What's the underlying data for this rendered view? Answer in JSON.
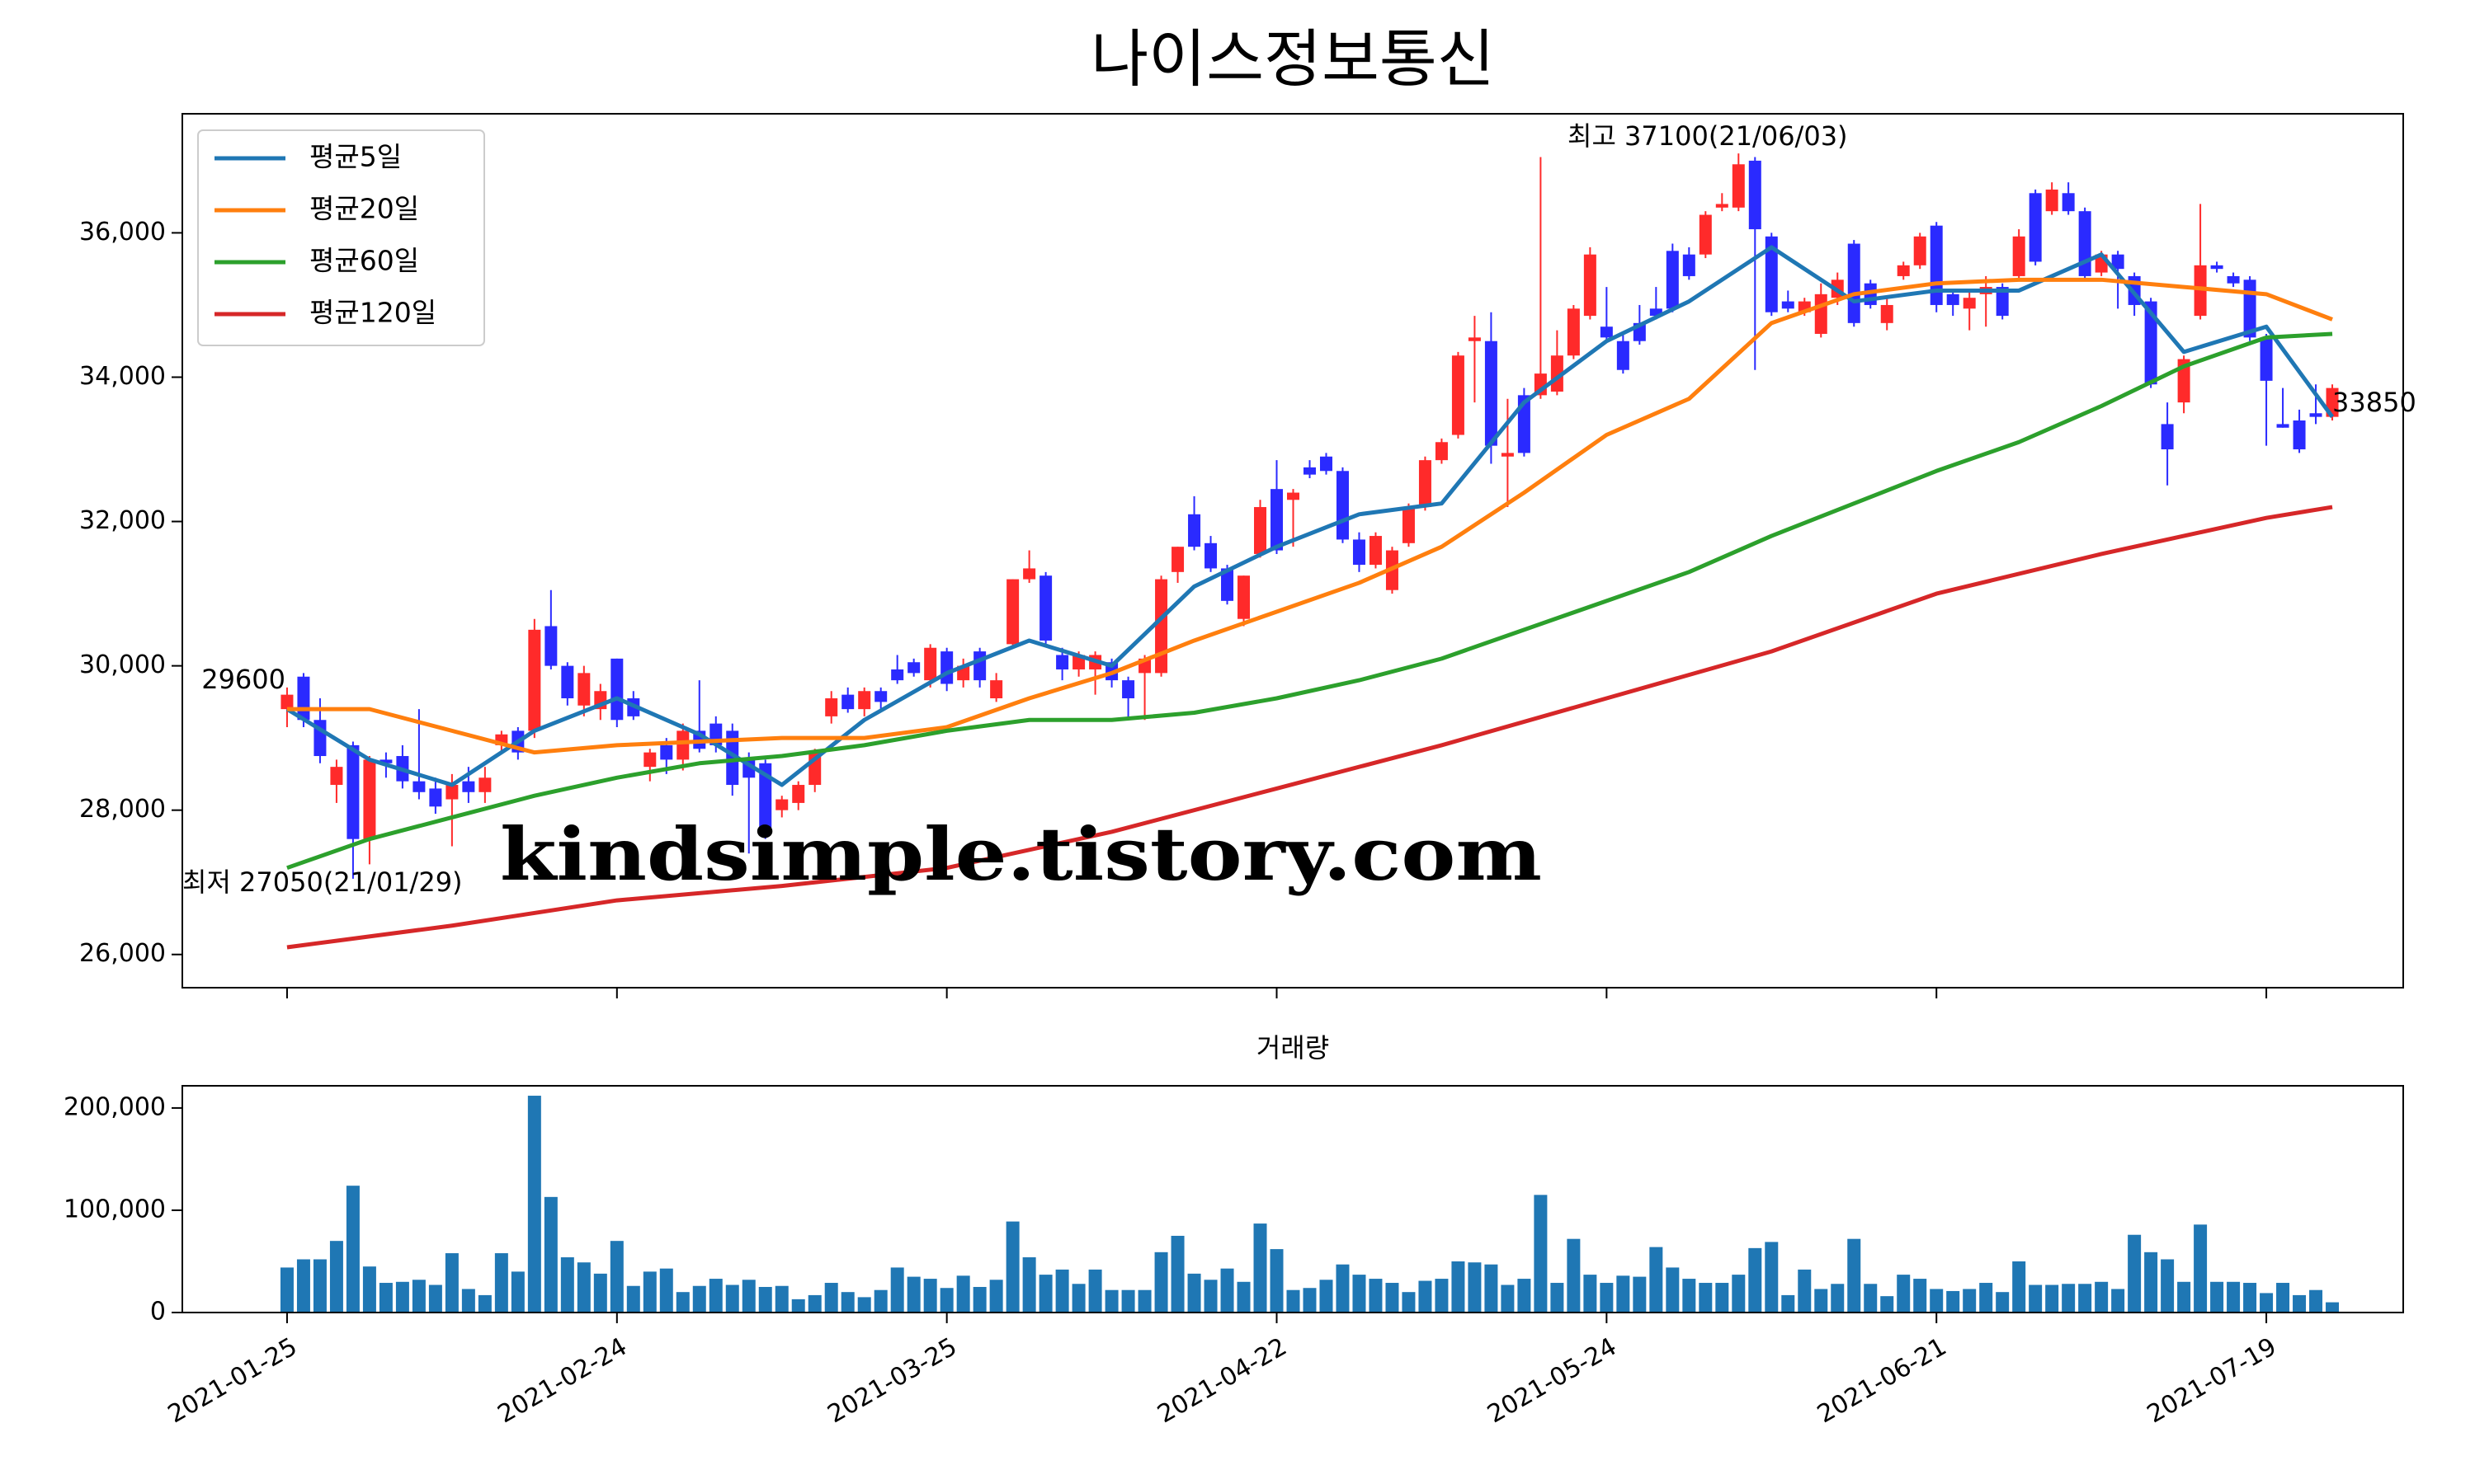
{
  "chart_data": [
    {
      "type": "candlestick",
      "title": "나이스정보통신",
      "up_color": "#ff2a2a",
      "down_color": "#2a2aff",
      "xlim": [
        -6.35,
        128.3
      ],
      "ylim": [
        25540,
        37650
      ],
      "yticks": [
        {
          "value": 26000,
          "label": "26,000"
        },
        {
          "value": 28000,
          "label": "28,000"
        },
        {
          "value": 30000,
          "label": "30,000"
        },
        {
          "value": 32000,
          "label": "32,000"
        },
        {
          "value": 34000,
          "label": "34,000"
        },
        {
          "value": 36000,
          "label": "36,000"
        }
      ],
      "legend": "upper left",
      "open": [
        29400,
        29850,
        29250,
        28350,
        28900,
        27600,
        28700,
        28750,
        28400,
        28300,
        28150,
        28400,
        28250,
        28900,
        29100,
        29100,
        30550,
        30000,
        29450,
        29400,
        30100,
        29550,
        28600,
        28900,
        28700,
        29100,
        29200,
        29100,
        28700,
        28650,
        28000,
        28100,
        28350,
        29300,
        29600,
        29400,
        29650,
        29950,
        30050,
        29800,
        30200,
        29800,
        30200,
        29550,
        30300,
        31200,
        31250,
        30150,
        29950,
        29950,
        30050,
        29800,
        29900,
        29900,
        31300,
        32100,
        31700,
        31350,
        30650,
        31550,
        32450,
        32300,
        32750,
        32900,
        32700,
        31750,
        31400,
        31050,
        31700,
        32200,
        32850,
        33200,
        34500,
        34500,
        32900,
        33750,
        33750,
        33800,
        34300,
        34850,
        34700,
        34500,
        34750,
        34950,
        35750,
        35700,
        35700,
        36350,
        36350,
        37000,
        35950,
        35050,
        34900,
        34600,
        35100,
        35850,
        35300,
        34750,
        35400,
        35550,
        36100,
        35150,
        34950,
        35150,
        35250,
        35400,
        36550,
        36300,
        36550,
        36300,
        35450,
        35700,
        35400,
        35050,
        33350,
        33650,
        34850,
        35550,
        35400,
        35350,
        34550,
        33350,
        33400,
        33500,
        33450
      ],
      "high": [
        29700,
        29900,
        29550,
        28700,
        28950,
        28750,
        28800,
        28900,
        29400,
        28450,
        28500,
        28600,
        28600,
        29100,
        29150,
        30650,
        31050,
        30050,
        30000,
        29750,
        30100,
        29650,
        28850,
        29000,
        29200,
        29800,
        29300,
        29200,
        28800,
        28700,
        28200,
        28400,
        28850,
        29650,
        29700,
        29700,
        29700,
        30150,
        30100,
        30300,
        30250,
        30100,
        30250,
        29900,
        31200,
        31600,
        31300,
        30250,
        30200,
        30200,
        30100,
        29850,
        30150,
        31250,
        31650,
        32350,
        31800,
        31400,
        31250,
        32300,
        32850,
        32450,
        32850,
        32950,
        32750,
        31850,
        31850,
        31650,
        32250,
        32900,
        33150,
        34350,
        34850,
        34900,
        33700,
        33850,
        37050,
        34650,
        35000,
        35800,
        35250,
        34600,
        35000,
        35250,
        35850,
        35800,
        36300,
        36550,
        37100,
        37050,
        36000,
        35200,
        35100,
        35300,
        35450,
        35900,
        35350,
        35100,
        35600,
        36000,
        36150,
        35200,
        35200,
        35400,
        35300,
        36050,
        36600,
        36700,
        36700,
        36350,
        35750,
        35750,
        35450,
        35100,
        33650,
        34300,
        36400,
        35600,
        35450,
        35400,
        34600,
        33850,
        33550,
        33900,
        33900
      ],
      "low": [
        29150,
        29150,
        28650,
        28100,
        27050,
        27250,
        28450,
        28300,
        28150,
        27950,
        27500,
        28100,
        28100,
        28800,
        28700,
        29000,
        29950,
        29450,
        29300,
        29250,
        29150,
        29250,
        28400,
        28500,
        28550,
        28800,
        28800,
        28200,
        27400,
        27600,
        27900,
        28000,
        28250,
        29200,
        29350,
        29300,
        29400,
        29750,
        29850,
        29700,
        29650,
        29700,
        29700,
        29500,
        30250,
        31150,
        30300,
        29800,
        29850,
        29600,
        29700,
        29250,
        29250,
        29850,
        31150,
        31600,
        31300,
        30850,
        30550,
        31500,
        31550,
        31650,
        32600,
        32650,
        31700,
        31300,
        31350,
        31000,
        31650,
        32150,
        32800,
        33150,
        33650,
        32800,
        32200,
        32900,
        33700,
        33750,
        34250,
        34800,
        34500,
        34050,
        34450,
        34800,
        34900,
        35350,
        35650,
        36300,
        36300,
        34100,
        34850,
        34900,
        34850,
        34550,
        35000,
        34700,
        34950,
        34650,
        35350,
        35500,
        34900,
        34850,
        34650,
        34700,
        34800,
        35350,
        35550,
        36250,
        36250,
        35350,
        35400,
        34950,
        34850,
        33850,
        32500,
        33500,
        34800,
        35450,
        35250,
        34500,
        33050,
        33300,
        32950,
        33350,
        33400
      ],
      "close": [
        29600,
        29250,
        28750,
        28600,
        27600,
        28700,
        28650,
        28400,
        28250,
        28050,
        28350,
        28250,
        28450,
        29050,
        28800,
        30500,
        30000,
        29550,
        29900,
        29650,
        29250,
        29300,
        28800,
        28700,
        29100,
        28850,
        28900,
        28350,
        28450,
        27750,
        28150,
        28350,
        28800,
        29550,
        29400,
        29650,
        29500,
        29800,
        29900,
        30250,
        29750,
        30000,
        29800,
        29800,
        31200,
        31350,
        30350,
        29950,
        30150,
        30150,
        29800,
        29550,
        30100,
        31200,
        31650,
        31650,
        31350,
        30900,
        31250,
        32200,
        31600,
        32400,
        32650,
        32700,
        31750,
        31400,
        31800,
        31600,
        32200,
        32850,
        33100,
        34300,
        34550,
        33050,
        32950,
        32950,
        34050,
        34300,
        34950,
        35700,
        34550,
        34100,
        34500,
        34850,
        34950,
        35400,
        36250,
        36400,
        36950,
        36050,
        34900,
        34950,
        35050,
        35150,
        35350,
        34750,
        35000,
        35000,
        35550,
        35950,
        35000,
        35000,
        35100,
        35250,
        34850,
        35950,
        35600,
        36600,
        36300,
        35400,
        35700,
        35500,
        35000,
        33900,
        33000,
        34250,
        35550,
        35500,
        35300,
        34550,
        33950,
        33300,
        33000,
        33450,
        33850
      ],
      "series": [
        {
          "name": "평균5일",
          "color": "#1f77b4",
          "x": [
            0,
            5,
            10,
            15,
            20,
            25,
            30,
            35,
            40,
            45,
            50,
            55,
            60,
            65,
            70,
            75,
            80,
            85,
            90,
            95,
            100,
            105,
            110,
            115,
            120,
            124
          ],
          "values": [
            29400,
            28700,
            28350,
            29100,
            29550,
            29050,
            28350,
            29250,
            29900,
            30350,
            30000,
            31100,
            31650,
            32100,
            32250,
            33650,
            34500,
            35050,
            35800,
            35050,
            35200,
            35200,
            35700,
            34350,
            34700,
            33450
          ]
        },
        {
          "name": "평균20일",
          "color": "#ff7f0e",
          "x": [
            0,
            5,
            10,
            15,
            20,
            25,
            30,
            35,
            40,
            45,
            50,
            55,
            60,
            65,
            70,
            75,
            80,
            85,
            90,
            95,
            100,
            105,
            110,
            115,
            120,
            124
          ],
          "values": [
            29400,
            29400,
            29100,
            28800,
            28900,
            28950,
            29000,
            29000,
            29150,
            29550,
            29900,
            30350,
            30750,
            31150,
            31650,
            32400,
            33200,
            33700,
            34750,
            35150,
            35300,
            35350,
            35350,
            35250,
            35150,
            34800
          ]
        },
        {
          "name": "평균60일",
          "color": "#2ca02c",
          "x": [
            0,
            5,
            10,
            15,
            20,
            25,
            30,
            35,
            40,
            45,
            50,
            55,
            60,
            65,
            70,
            75,
            80,
            85,
            90,
            95,
            100,
            105,
            110,
            115,
            120,
            124
          ],
          "values": [
            27200,
            27600,
            27900,
            28200,
            28450,
            28650,
            28750,
            28900,
            29100,
            29250,
            29250,
            29350,
            29550,
            29800,
            30100,
            30500,
            30900,
            31300,
            31800,
            32250,
            32700,
            33100,
            33600,
            34150,
            34550,
            34600
          ]
        },
        {
          "name": "평균120일",
          "color": "#d62728",
          "x": [
            0,
            10,
            20,
            30,
            40,
            50,
            60,
            70,
            80,
            90,
            100,
            110,
            120,
            124
          ],
          "values": [
            26100,
            26400,
            26750,
            26950,
            27200,
            27700,
            28300,
            28900,
            29550,
            30200,
            31000,
            31550,
            32050,
            32200
          ]
        }
      ],
      "annotations": [
        {
          "text": "29600",
          "color": "#000000"
        },
        {
          "text": "33850",
          "color": "#000000"
        },
        {
          "text": "최고 37100(21/06/03)",
          "color": "#ff0000"
        },
        {
          "text": "최저 27050(21/01/29)",
          "color": "#0000ff"
        }
      ],
      "watermark": "kindsimple.tistory.com",
      "watermark_color": "#dda0ee"
    },
    {
      "type": "bar",
      "title": "거래량",
      "color": "#1f77b4",
      "xlim": [
        -6.35,
        128.3
      ],
      "ylim": [
        0,
        221700
      ],
      "yticks": [
        0,
        {
          "value": 100000,
          "label": "100,000"
        },
        {
          "value": 200000,
          "label": "200,000"
        }
      ],
      "xticks": [
        {
          "value": 0,
          "label": "2021-01-25"
        },
        {
          "value": 20,
          "label": "2021-02-24"
        },
        {
          "value": 40,
          "label": "2021-03-25"
        },
        {
          "value": 60,
          "label": "2021-04-22"
        },
        {
          "value": 80,
          "label": "2021-05-24"
        },
        {
          "value": 100,
          "label": "2021-06-21"
        },
        {
          "value": 120,
          "label": "2021-07-19"
        }
      ],
      "values": [
        44000,
        52000,
        52000,
        70000,
        124000,
        45000,
        29000,
        30000,
        32000,
        27000,
        58000,
        23000,
        17000,
        58000,
        40000,
        212000,
        113000,
        54000,
        49000,
        38000,
        70000,
        26000,
        40000,
        43000,
        20000,
        26000,
        33000,
        27000,
        32000,
        25000,
        26000,
        13000,
        17000,
        29000,
        20000,
        15000,
        22000,
        44000,
        35000,
        33000,
        24000,
        36000,
        25000,
        32000,
        89000,
        54000,
        37000,
        42000,
        28000,
        42000,
        22000,
        22000,
        22000,
        59000,
        75000,
        38000,
        32000,
        43000,
        30000,
        87000,
        62000,
        22000,
        24000,
        32000,
        47000,
        37000,
        33000,
        29000,
        20000,
        31000,
        33000,
        50000,
        49000,
        47000,
        27000,
        33000,
        115000,
        29000,
        72000,
        37000,
        29000,
        36000,
        35000,
        64000,
        44000,
        33000,
        29000,
        29000,
        37000,
        63000,
        69000,
        17000,
        42000,
        23000,
        28000,
        72000,
        28000,
        16000,
        37000,
        33000,
        23000,
        21000,
        23000,
        29000,
        20000,
        50000,
        27000,
        27000,
        28000,
        28000,
        30000,
        23000,
        76000,
        59000,
        52000,
        30000,
        86000,
        30000,
        30000,
        29000,
        19000,
        29000,
        17000,
        22000,
        10000
      ]
    }
  ]
}
